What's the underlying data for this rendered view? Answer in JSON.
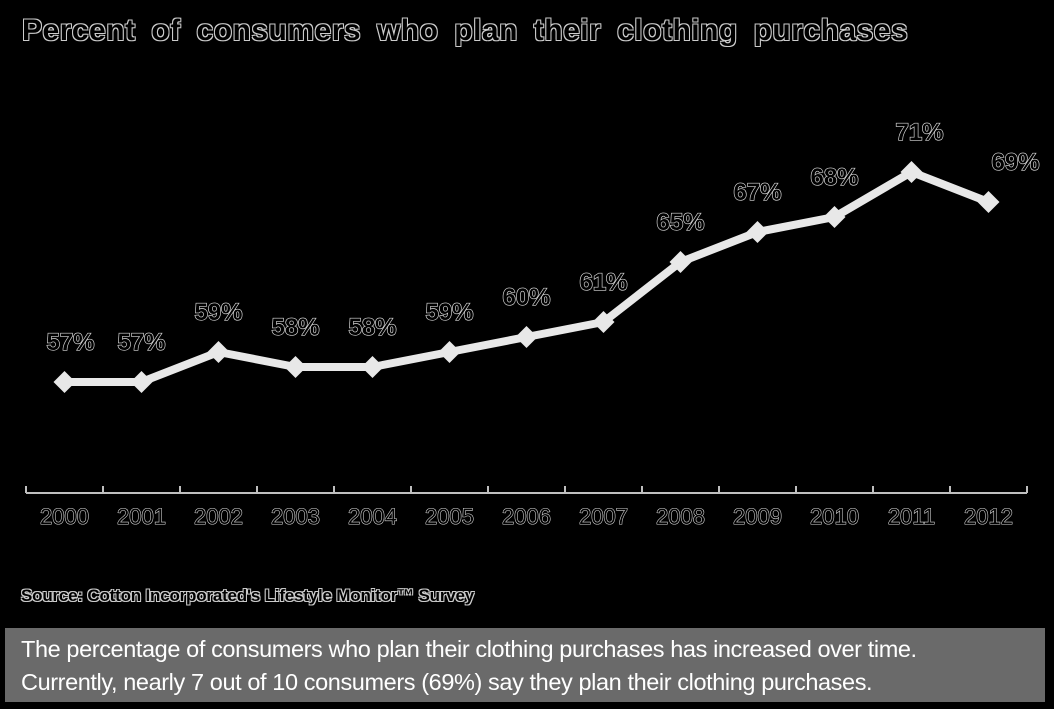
{
  "title": "Percent of consumers who plan their clothing purchases",
  "source_note": "Source: Cotton Incorporated's Lifestyle Monitor™ Survey",
  "caption": {
    "line1": "The percentage of consumers who plan their clothing purchases has increased over time.",
    "line2": "Currently, nearly 7 out of 10 consumers (69%) say they plan their clothing purchases."
  },
  "colors": {
    "background": "#000000",
    "line": "#e8e8e8",
    "marker": "#e8e8e8",
    "axis": "#bfbfbf",
    "text_fill": "#000000",
    "text_outline": "#d9d9d9",
    "caption_bg": "#6a6a6a",
    "caption_text": "#ffffff"
  },
  "chart_data": {
    "type": "line",
    "title": "Percent of consumers who plan their clothing purchases",
    "categories": [
      "2000",
      "2001",
      "2002",
      "2003",
      "2004",
      "2005",
      "2006",
      "2007",
      "2008",
      "2009",
      "2010",
      "2011",
      "2012"
    ],
    "values": [
      57,
      57,
      59,
      58,
      58,
      59,
      60,
      61,
      65,
      67,
      68,
      71,
      69
    ],
    "point_labels": [
      "57%",
      "57%",
      "59%",
      "58%",
      "58%",
      "59%",
      "60%",
      "61%",
      "65%",
      "67%",
      "68%",
      "71%",
      "69%"
    ],
    "xlabel": "",
    "ylabel": "",
    "ylim": [
      50,
      75
    ],
    "grid": false,
    "legend": false,
    "marker_shape": "diamond",
    "annotation": "Source: Cotton Incorporated's Lifestyle Monitor™ Survey"
  }
}
